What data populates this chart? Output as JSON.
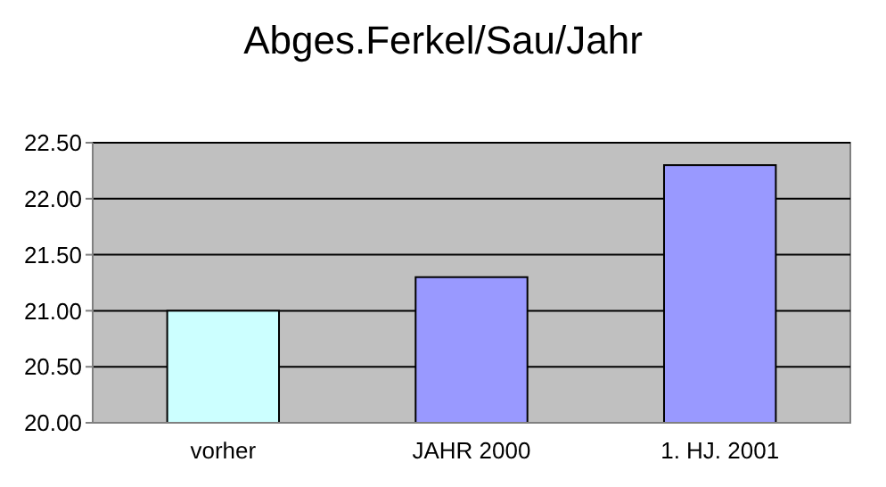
{
  "chart_data": {
    "type": "bar",
    "title": "Abges.Ferkel/Sau/Jahr",
    "categories": [
      "vorher",
      "JAHR 2000",
      "1. HJ. 2001"
    ],
    "values": [
      21.0,
      21.3,
      22.3
    ],
    "colors": [
      "#ccffff",
      "#9999ff",
      "#9999ff"
    ],
    "ylim": [
      20,
      22.5
    ],
    "yticks": [
      {
        "value": 20,
        "label": "20.00"
      },
      {
        "value": 20.5,
        "label": "20.50"
      },
      {
        "value": 21,
        "label": "21.00"
      },
      {
        "value": 21.5,
        "label": "21.50"
      },
      {
        "value": 22,
        "label": "22.00"
      },
      {
        "value": 22.5,
        "label": "22.50"
      }
    ],
    "grid": "y"
  }
}
